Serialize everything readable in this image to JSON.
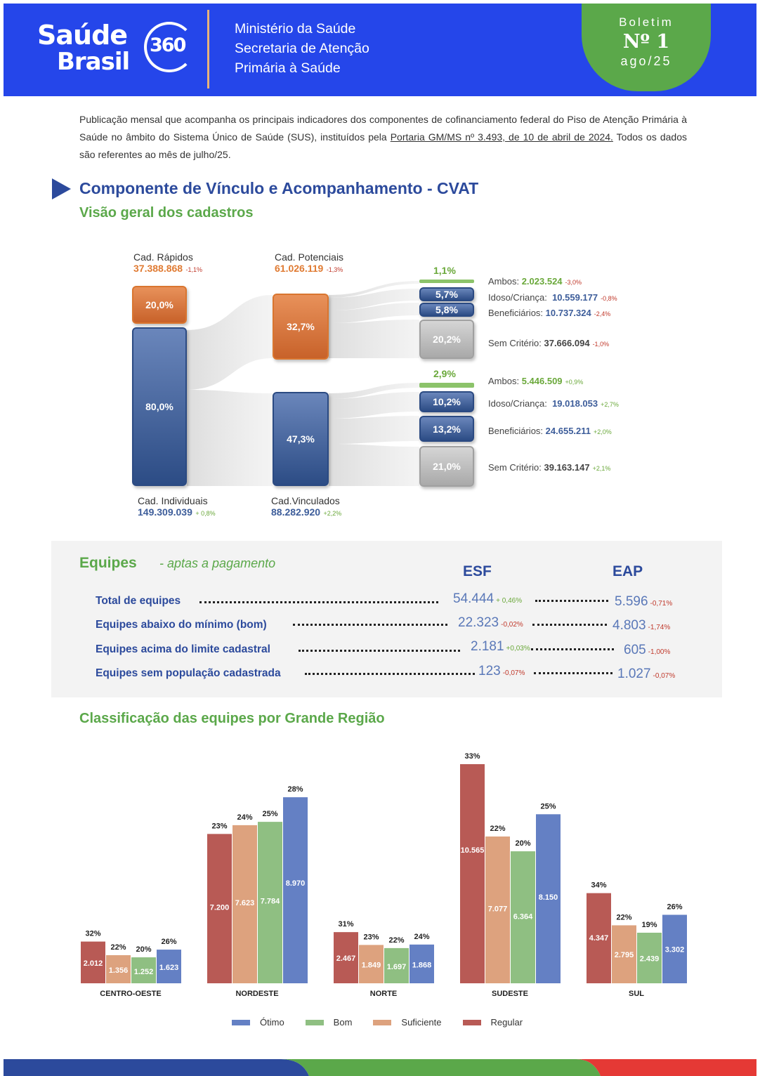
{
  "header": {
    "logo_line1": "Saúde",
    "logo_line2": "Brasil",
    "logo_360": "360",
    "ministry_line1": "Ministério da Saúde",
    "ministry_line2": "Secretaria de Atenção",
    "ministry_line3": "Primária à Saúde",
    "badge_label": "Boletim",
    "badge_number": "Nº 1",
    "badge_date": "ago/25"
  },
  "intro": {
    "text_before": "Publicação mensal que acompanha os principais indicadores dos componentes de cofinanciamento federal do Piso de Atenção Primária à Saúde no âmbito do Sistema Único de Saúde (SUS), instituídos pela ",
    "link": "Portaria GM/MS nº 3.493, de 10 de abril de 2024.",
    "text_after": "  Todos os dados são referentes ao mês de julho/25."
  },
  "section1": {
    "title": "Componente de Vínculo e Acompanhamento - CVAT",
    "subtitle": "Visão geral dos cadastros"
  },
  "sankey": {
    "cad_rapidos": {
      "label": "Cad. Rápidos",
      "value": "37.388.868",
      "change": "-1,1%",
      "pct": "20,0%"
    },
    "cad_individuais": {
      "label": "Cad. Individuais",
      "value": "149.309.039",
      "change": "+ 0,8%",
      "pct": "80,0%"
    },
    "cad_potenciais": {
      "label": "Cad. Potenciais",
      "value": "61.026.119",
      "change": "-1,3%",
      "pct": "32,7%"
    },
    "cad_vinculados": {
      "label": "Cad.Vinculados",
      "value": "88.282.920",
      "change": "+2,2%",
      "pct": "47,3%"
    },
    "potenciais_breakdown": [
      {
        "label": "Ambos:",
        "value": "2.023.524",
        "change": "-3,0%",
        "pct": "1,1%"
      },
      {
        "label": "Idoso/Criança:",
        "value": "10.559.177",
        "change": "-0,8%",
        "pct": "5,7%"
      },
      {
        "label": "Beneficiários:",
        "value": "10.737.324",
        "change": "-2,4%",
        "pct": "5,8%"
      },
      {
        "label": "Sem Critério:",
        "value": "37.666.094",
        "change": "-1,0%",
        "pct": "20,2%"
      }
    ],
    "vinculados_breakdown": [
      {
        "label": "Ambos:",
        "value": "5.446.509",
        "change": "+0,9%",
        "pct": "2,9%"
      },
      {
        "label": "Idoso/Criança:",
        "value": "19.018.053",
        "change": "+2,7%",
        "pct": "10,2%"
      },
      {
        "label": "Beneficiários:",
        "value": "24.655.211",
        "change": "+2,0%",
        "pct": "13,2%"
      },
      {
        "label": "Sem Critério:",
        "value": "39.163.147",
        "change": "+2,1%",
        "pct": "21,0%"
      }
    ]
  },
  "equipes": {
    "title": "Equipes",
    "subtitle": "- aptas a pagamento",
    "col_esf": "ESF",
    "col_eap": "EAP",
    "rows": [
      {
        "label": "Total de equipes",
        "esf": "54.444",
        "esf_change": "+ 0,46%",
        "eap": "5.596",
        "eap_change": "-0,71%"
      },
      {
        "label": "Equipes abaixo do mínimo (bom)",
        "esf": "22.323",
        "esf_change": "-0,02%",
        "eap": "4.803",
        "eap_change": "-1,74%"
      },
      {
        "label": "Equipes acima do  limite cadastral",
        "esf": "2.181",
        "esf_change": "+0,03%",
        "eap": "605",
        "eap_change": "-1,00%"
      },
      {
        "label": "Equipes sem população cadastrada",
        "esf": "123",
        "esf_change": "-0,07%",
        "eap": "1.027",
        "eap_change": "-0,07%"
      }
    ]
  },
  "section3": {
    "title": "Classificação das equipes por Grande Região"
  },
  "chart_data": {
    "type": "bar",
    "categories": [
      "CENTRO-OESTE",
      "NORDESTE",
      "NORTE",
      "SUDESTE",
      "SUL"
    ],
    "series": [
      {
        "name": "Regular",
        "color": "#b85a55",
        "values": [
          2012,
          7200,
          2467,
          10565,
          4347
        ],
        "labels": [
          "2.012",
          "7.200",
          "2.467",
          "10.565",
          "4.347"
        ],
        "pct": [
          "32%",
          "23%",
          "31%",
          "33%",
          "34%"
        ]
      },
      {
        "name": "Suficiente",
        "color": "#dda27e",
        "values": [
          1356,
          7623,
          1849,
          7077,
          2795
        ],
        "labels": [
          "1.356",
          "7.623",
          "1.849",
          "7.077",
          "2.795"
        ],
        "pct": [
          "22%",
          "24%",
          "23%",
          "22%",
          "22%"
        ]
      },
      {
        "name": "Bom",
        "color": "#8fbf82",
        "values": [
          1252,
          7784,
          1697,
          6364,
          2439
        ],
        "labels": [
          "1.252",
          "7.784",
          "1.697",
          "6.364",
          "2.439"
        ],
        "pct": [
          "20%",
          "25%",
          "22%",
          "20%",
          "19%"
        ]
      },
      {
        "name": "Ótimo",
        "color": "#6480c4",
        "values": [
          1623,
          8970,
          1868,
          8150,
          3302
        ],
        "labels": [
          "1.623",
          "8.970",
          "1.868",
          "8.150",
          "3.302"
        ],
        "pct": [
          "26%",
          "28%",
          "24%",
          "25%",
          "26%"
        ]
      }
    ],
    "legend": [
      {
        "name": "Ótimo",
        "color": "#6480c4"
      },
      {
        "name": "Bom",
        "color": "#8fbf82"
      },
      {
        "name": "Suficiente",
        "color": "#dda27e"
      },
      {
        "name": "Regular",
        "color": "#b85a55"
      }
    ],
    "legend_position": "bottom"
  }
}
